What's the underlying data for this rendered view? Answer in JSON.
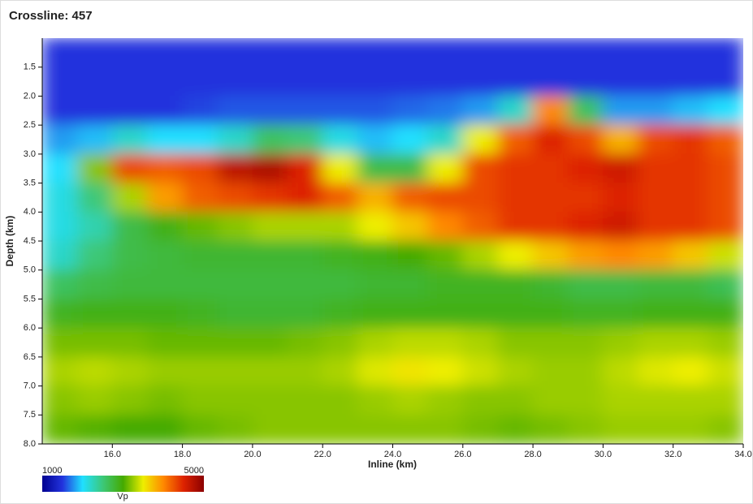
{
  "chart_data": {
    "type": "heatmap",
    "title": "Crossline: 457",
    "xlabel": "Inline (km)",
    "ylabel": "Depth (km)",
    "xlim": [
      14.0,
      34.0
    ],
    "xticks": [
      {
        "value": 16,
        "label": "16.0"
      },
      {
        "value": 18,
        "label": "18.0"
      },
      {
        "value": 20,
        "label": "20.0"
      },
      {
        "value": 22,
        "label": "22.0"
      },
      {
        "value": 24,
        "label": "24.0"
      },
      {
        "value": 26,
        "label": "26.0"
      },
      {
        "value": 28,
        "label": "28.0"
      },
      {
        "value": 30,
        "label": "30.0"
      },
      {
        "value": 32,
        "label": "32.0"
      },
      {
        "value": 34,
        "label": "34.0"
      }
    ],
    "ylim": [
      1.0,
      8.0
    ],
    "y_inverted": true,
    "yticks": [
      1.5,
      {
        "value": 2,
        "label": "2.0"
      },
      2.5,
      {
        "value": 3,
        "label": "3.0"
      },
      3.5,
      {
        "value": 4,
        "label": "4.0"
      },
      4.5,
      {
        "value": 5,
        "label": "5.0"
      },
      5.5,
      {
        "value": 6,
        "label": "6.0"
      },
      6.5,
      {
        "value": 7,
        "label": "7.0"
      },
      7.5,
      {
        "value": 8,
        "label": "8.0"
      }
    ],
    "x": [
      14.5,
      15.5,
      16.5,
      17.5,
      18.5,
      19.5,
      20.5,
      21.5,
      22.5,
      23.5,
      24.5,
      25.5,
      26.5,
      27.5,
      28.5,
      29.5,
      30.5,
      31.5,
      32.5,
      33.5
    ],
    "y": [
      1.25,
      1.75,
      2.25,
      2.75,
      3.25,
      3.75,
      4.25,
      4.75,
      5.25,
      5.75,
      6.25,
      6.75,
      7.25,
      7.75
    ],
    "z": [
      [
        1500,
        1500,
        1500,
        1500,
        1500,
        1500,
        1500,
        1500,
        1500,
        1500,
        1500,
        1500,
        1500,
        1500,
        1500,
        1500,
        1500,
        1500,
        1500,
        1500
      ],
      [
        1500,
        1500,
        1500,
        1500,
        1500,
        1500,
        1500,
        1500,
        1500,
        1500,
        1500,
        1500,
        1500,
        1500,
        1500,
        1500,
        1500,
        1500,
        1500,
        1500
      ],
      [
        1500,
        1500,
        1500,
        1500,
        1550,
        1600,
        1600,
        1600,
        1600,
        1600,
        1650,
        1700,
        1800,
        2200,
        4000,
        2600,
        1800,
        1800,
        1900,
        2000
      ],
      [
        1800,
        1900,
        2200,
        2000,
        2000,
        2200,
        2600,
        2500,
        2100,
        1900,
        2000,
        2200,
        3500,
        4200,
        4500,
        4300,
        3800,
        4300,
        4400,
        4200
      ],
      [
        2000,
        3200,
        4300,
        4200,
        4300,
        4700,
        4800,
        4500,
        3500,
        2700,
        2700,
        3500,
        4300,
        4400,
        4400,
        4500,
        4600,
        4400,
        4400,
        4300
      ],
      [
        2100,
        2500,
        3300,
        3900,
        4200,
        4300,
        4400,
        4500,
        4200,
        3800,
        4200,
        4300,
        4300,
        4400,
        4400,
        4400,
        4500,
        4400,
        4400,
        4300
      ],
      [
        2100,
        2300,
        2700,
        2900,
        3100,
        3200,
        3300,
        3300,
        3300,
        3500,
        3700,
        4000,
        4200,
        4400,
        4400,
        4500,
        4600,
        4400,
        4400,
        4300
      ],
      [
        2200,
        2500,
        2700,
        2750,
        2800,
        2800,
        2800,
        2800,
        2850,
        2900,
        3000,
        3100,
        3300,
        3500,
        3700,
        3900,
        4000,
        3900,
        3700,
        3400
      ],
      [
        2600,
        2700,
        2750,
        2750,
        2750,
        2750,
        2750,
        2750,
        2750,
        2800,
        2800,
        2850,
        2850,
        2850,
        2800,
        2700,
        2700,
        2750,
        2750,
        2650
      ],
      [
        2850,
        2900,
        2900,
        2900,
        2850,
        2800,
        2800,
        2800,
        2850,
        2900,
        2900,
        2900,
        2900,
        2900,
        2900,
        2850,
        2850,
        2900,
        2900,
        2900
      ],
      [
        3150,
        3150,
        3150,
        3100,
        3100,
        3100,
        3100,
        3150,
        3200,
        3300,
        3350,
        3350,
        3300,
        3200,
        3200,
        3200,
        3250,
        3300,
        3300,
        3250
      ],
      [
        3300,
        3350,
        3300,
        3250,
        3250,
        3250,
        3250,
        3250,
        3300,
        3450,
        3550,
        3500,
        3400,
        3300,
        3250,
        3250,
        3350,
        3450,
        3500,
        3400
      ],
      [
        3200,
        3250,
        3200,
        3150,
        3200,
        3200,
        3200,
        3200,
        3200,
        3250,
        3300,
        3250,
        3200,
        3200,
        3250,
        3250,
        3300,
        3300,
        3300,
        3300
      ],
      [
        3100,
        3050,
        3000,
        3000,
        3100,
        3150,
        3200,
        3200,
        3200,
        3200,
        3200,
        3200,
        3150,
        3100,
        3150,
        3200,
        3250,
        3250,
        3250,
        3200
      ]
    ],
    "colorbar": {
      "label": "Vp",
      "range": [
        1000,
        5000
      ],
      "colors": [
        "#000090",
        "#2233dd",
        "#20e0ff",
        "#3cc878",
        "#44aa00",
        "#eeee00",
        "#ff8800",
        "#dd2200",
        "#8b0000"
      ]
    }
  }
}
